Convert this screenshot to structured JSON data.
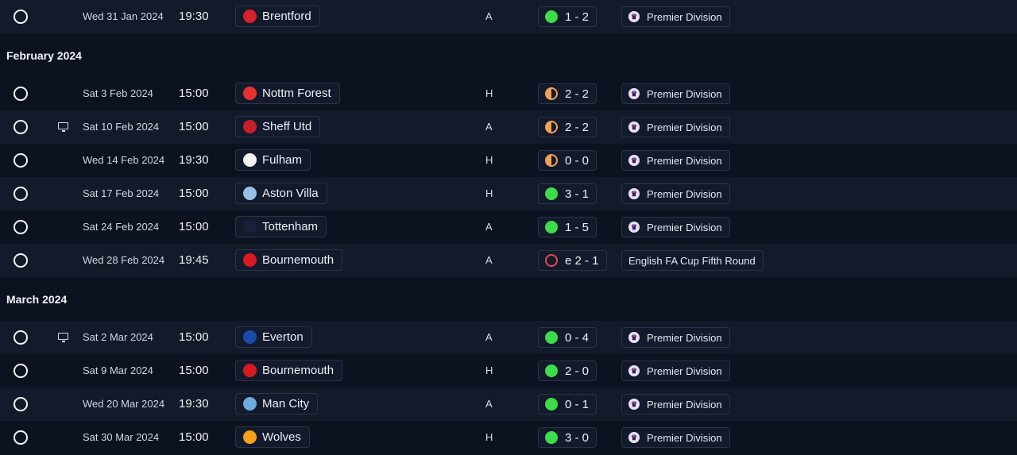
{
  "months": [
    {
      "key": "feb",
      "label": "February 2024"
    },
    {
      "key": "mar",
      "label": "March 2024"
    }
  ],
  "fixtures": [
    {
      "date": "Wed 31 Jan 2024",
      "time": "19:30",
      "team": "Brentford",
      "crest": "brentford-crest-icon",
      "crest_color": "#d8202a",
      "venue": "A",
      "result_type": "win",
      "score": "1 - 2",
      "competition": "Premier Division",
      "comp_icon": "premier-league-lion-icon",
      "tv": false
    },
    {
      "date": "Sat 3 Feb 2024",
      "time": "15:00",
      "team": "Nottm Forest",
      "crest": "nottm-forest-crest-icon",
      "crest_color": "#e53233",
      "venue": "H",
      "result_type": "draw",
      "score": "2 - 2",
      "competition": "Premier Division",
      "comp_icon": "premier-league-lion-icon",
      "tv": false
    },
    {
      "date": "Sat 10 Feb 2024",
      "time": "15:00",
      "team": "Sheff Utd",
      "crest": "sheff-utd-crest-icon",
      "crest_color": "#c8202a",
      "venue": "A",
      "result_type": "draw",
      "score": "2 - 2",
      "competition": "Premier Division",
      "comp_icon": "premier-league-lion-icon",
      "tv": true
    },
    {
      "date": "Wed 14 Feb 2024",
      "time": "19:30",
      "team": "Fulham",
      "crest": "fulham-crest-icon",
      "crest_color": "#f2f2f2",
      "venue": "H",
      "result_type": "draw",
      "score": "0 - 0",
      "competition": "Premier Division",
      "comp_icon": "premier-league-lion-icon",
      "tv": false
    },
    {
      "date": "Sat 17 Feb 2024",
      "time": "15:00",
      "team": "Aston Villa",
      "crest": "aston-villa-crest-icon",
      "crest_color": "#95bfe5",
      "venue": "H",
      "result_type": "win",
      "score": "3 - 1",
      "competition": "Premier Division",
      "comp_icon": "premier-league-lion-icon",
      "tv": false
    },
    {
      "date": "Sat 24 Feb 2024",
      "time": "15:00",
      "team": "Tottenham",
      "crest": "tottenham-crest-icon",
      "crest_color": "#1a1f3a",
      "venue": "A",
      "result_type": "win",
      "score": "1 - 5",
      "competition": "Premier Division",
      "comp_icon": "premier-league-lion-icon",
      "tv": false
    },
    {
      "date": "Wed 28 Feb 2024",
      "time": "19:45",
      "team": "Bournemouth",
      "crest": "bournemouth-crest-icon",
      "crest_color": "#d71920",
      "venue": "A",
      "result_type": "loss",
      "score": "e 2 - 1",
      "competition": "English FA Cup Fifth Round",
      "comp_icon": "",
      "tv": false
    },
    {
      "date": "Sat 2 Mar 2024",
      "time": "15:00",
      "team": "Everton",
      "crest": "everton-crest-icon",
      "crest_color": "#1b4aa8",
      "venue": "A",
      "result_type": "win",
      "score": "0 - 4",
      "competition": "Premier Division",
      "comp_icon": "premier-league-lion-icon",
      "tv": true
    },
    {
      "date": "Sat 9 Mar 2024",
      "time": "15:00",
      "team": "Bournemouth",
      "crest": "bournemouth-crest-icon",
      "crest_color": "#d71920",
      "venue": "H",
      "result_type": "win",
      "score": "2 - 0",
      "competition": "Premier Division",
      "comp_icon": "premier-league-lion-icon",
      "tv": false
    },
    {
      "date": "Wed 20 Mar 2024",
      "time": "19:30",
      "team": "Man City",
      "crest": "man-city-crest-icon",
      "crest_color": "#6cabdd",
      "venue": "A",
      "result_type": "win",
      "score": "0 - 1",
      "competition": "Premier Division",
      "comp_icon": "premier-league-lion-icon",
      "tv": false
    },
    {
      "date": "Sat 30 Mar 2024",
      "time": "15:00",
      "team": "Wolves",
      "crest": "wolves-crest-icon",
      "crest_color": "#f9a01b",
      "venue": "H",
      "result_type": "win",
      "score": "3 - 0",
      "competition": "Premier Division",
      "comp_icon": "premier-league-lion-icon",
      "tv": false
    }
  ],
  "colors": {
    "win": "#3ddc4b",
    "draw": "#f0a058",
    "loss": "#e04a55",
    "background": "#0d1220",
    "row_alt": "#131a2a"
  }
}
